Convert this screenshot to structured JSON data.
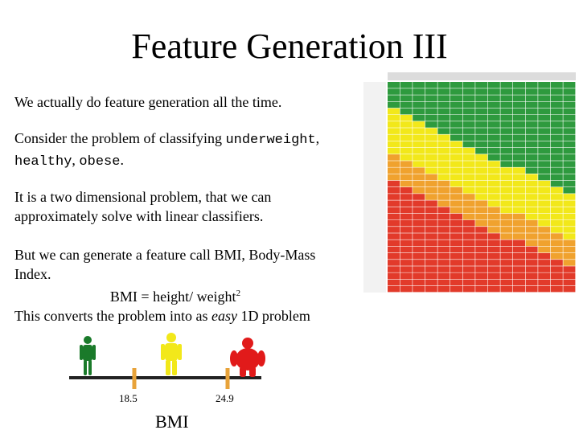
{
  "title": "Feature Generation III",
  "paragraphs": {
    "p1": "We actually do feature generation all the time.",
    "p2_prefix": "Consider the problem of classifying ",
    "p2_code1": "underweight",
    "p2_sep1": ",",
    "p2_code2": "healthy",
    "p2_sep2": ", ",
    "p2_code3": "obese",
    "p2_suffix": ".",
    "p3_line1": "It is a two dimensional problem, that we can",
    "p3_line2": "approximately solve with linear classifiers.",
    "p4_line1": "But we can generate a feature call BMI, Body-Mass",
    "p4_line2": "Index.",
    "p4_formula": "BMI  = height/ weight",
    "p4_formula_sup": "2",
    "p4_line3_prefix": "This converts the problem into as ",
    "p4_line3_em": "easy",
    "p4_line3_suffix": " 1D problem"
  },
  "figure": {
    "tick1": "18.5",
    "tick2": "24.9",
    "axis_label": "BMI",
    "colors": {
      "underweight": "#1a7a2a",
      "healthy": "#f2e81a",
      "obese": "#e11a1a",
      "tick": "#e8a33a",
      "axis": "#222222"
    }
  },
  "bmi_table": {
    "colors": {
      "green": "#2e9a3e",
      "yellow": "#f2e81a",
      "orange": "#f0a22e",
      "red": "#e23a2a"
    }
  }
}
